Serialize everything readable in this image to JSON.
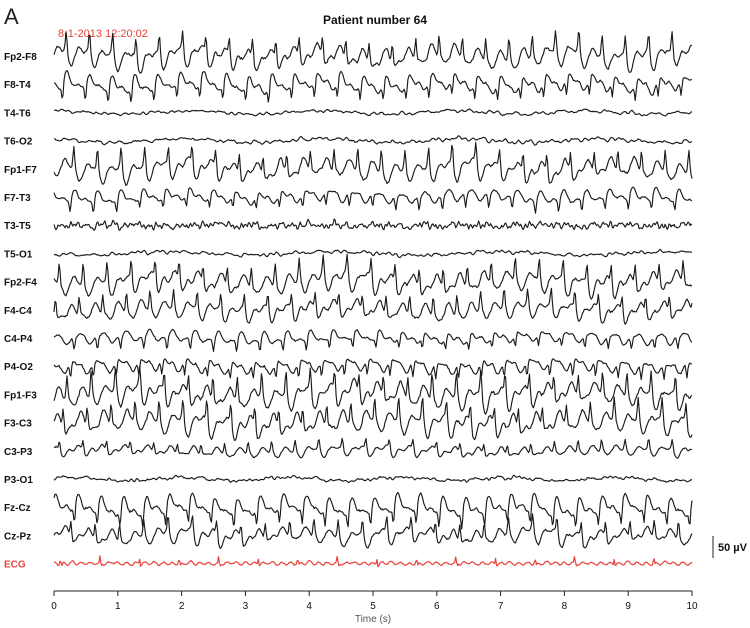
{
  "panel_letter": "A",
  "chart_data": {
    "type": "line",
    "title": "Patient number 64",
    "timestamp": "8-1-2013 12:20:02",
    "xlabel": "Time (s)",
    "xlim": [
      0,
      10
    ],
    "x_ticks": [
      0,
      1,
      2,
      3,
      4,
      5,
      6,
      7,
      8,
      9,
      10
    ],
    "scale_bar": "50 µV",
    "channels": [
      {
        "name": "Fp2-F8",
        "kind": "spike",
        "amp": 1.0,
        "seed": 1
      },
      {
        "name": "F8-T4",
        "kind": "spike",
        "amp": 0.8,
        "seed": 2
      },
      {
        "name": "T4-T6",
        "kind": "slow",
        "amp": 0.3,
        "seed": 3
      },
      {
        "name": "T6-O2",
        "kind": "slow",
        "amp": 0.35,
        "seed": 4
      },
      {
        "name": "Fp1-F7",
        "kind": "spike",
        "amp": 1.0,
        "seed": 5
      },
      {
        "name": "F7-T3",
        "kind": "spike",
        "amp": 0.6,
        "seed": 6
      },
      {
        "name": "T3-T5",
        "kind": "noisy",
        "amp": 0.35,
        "seed": 7
      },
      {
        "name": "T5-O1",
        "kind": "slow",
        "amp": 0.3,
        "seed": 8
      },
      {
        "name": "Fp2-F4",
        "kind": "spike",
        "amp": 1.0,
        "seed": 9
      },
      {
        "name": "F4-C4",
        "kind": "spike",
        "amp": 0.85,
        "seed": 10
      },
      {
        "name": "C4-P4",
        "kind": "spike",
        "amp": 0.55,
        "seed": 11
      },
      {
        "name": "P4-O2",
        "kind": "spike",
        "amp": 0.7,
        "seed": 12
      },
      {
        "name": "Fp1-F3",
        "kind": "spike",
        "amp": 1.1,
        "seed": 13
      },
      {
        "name": "F3-C3",
        "kind": "spike",
        "amp": 1.0,
        "seed": 14
      },
      {
        "name": "C3-P3",
        "kind": "spike",
        "amp": 0.5,
        "seed": 15
      },
      {
        "name": "P3-O1",
        "kind": "slow",
        "amp": 0.3,
        "seed": 16
      },
      {
        "name": "Fz-Cz",
        "kind": "spike",
        "amp": 0.85,
        "seed": 17
      },
      {
        "name": "Cz-Pz",
        "kind": "spike",
        "amp": 0.8,
        "seed": 18
      },
      {
        "name": "ECG",
        "kind": "ecg",
        "amp": 0.35,
        "seed": 19
      }
    ],
    "colors": {
      "eeg": "#1a1a1a",
      "ecg": "#e8413a",
      "timestamp": "#e8413a"
    }
  }
}
